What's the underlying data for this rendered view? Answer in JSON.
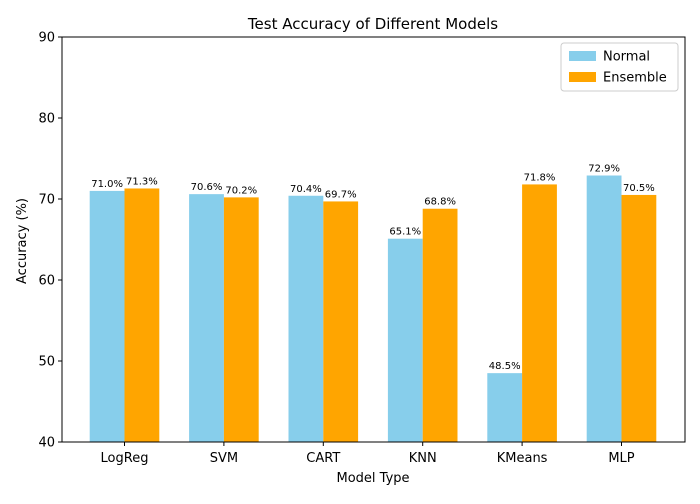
{
  "chart_data": {
    "type": "bar",
    "title": "Test Accuracy of Different Models",
    "xlabel": "Model Type",
    "ylabel": "Accuracy (%)",
    "categories": [
      "LogReg",
      "SVM",
      "CART",
      "KNN",
      "KMeans",
      "MLP"
    ],
    "series": [
      {
        "name": "Normal",
        "color": "#87ceeb",
        "values": [
          71.0,
          70.6,
          70.4,
          65.1,
          48.5,
          72.9
        ],
        "labels": [
          "71.0%",
          "70.6%",
          "70.4%",
          "65.1%",
          "48.5%",
          "72.9%"
        ]
      },
      {
        "name": "Ensemble",
        "color": "#ffa500",
        "values": [
          71.3,
          70.2,
          69.7,
          68.8,
          71.8,
          70.5
        ],
        "labels": [
          "71.3%",
          "70.2%",
          "69.7%",
          "68.8%",
          "71.8%",
          "70.5%"
        ]
      }
    ],
    "ylim": [
      40,
      90
    ],
    "yticks": [
      40,
      50,
      60,
      70,
      80,
      90
    ],
    "ytick_labels": [
      "40",
      "50",
      "60",
      "70",
      "80",
      "90"
    ],
    "grid": false,
    "legend_position": "top-right"
  }
}
